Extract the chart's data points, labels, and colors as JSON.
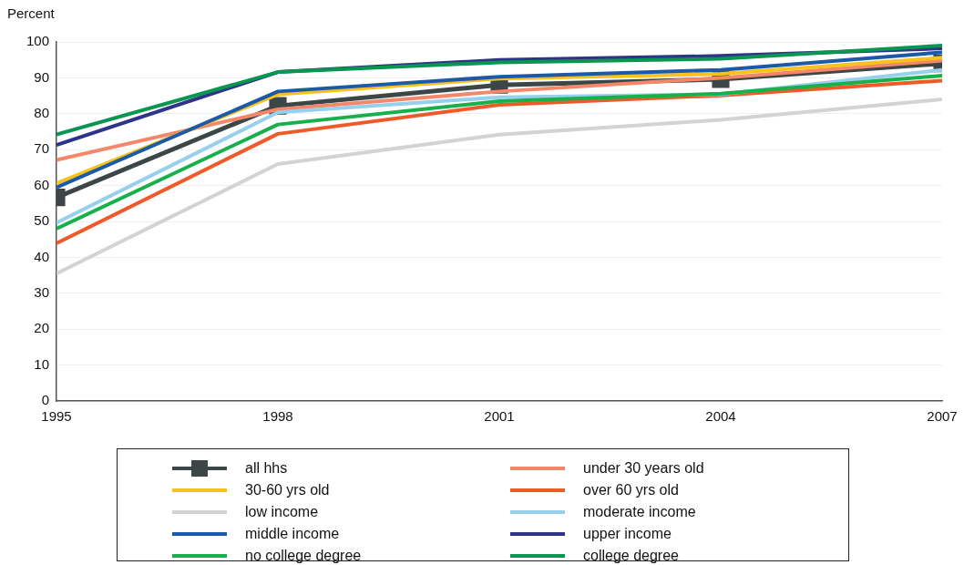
{
  "chart_data": {
    "type": "line",
    "ylabel": "Percent",
    "x": [
      1995,
      1998,
      2001,
      2004,
      2007
    ],
    "xlim": [
      1995,
      2007
    ],
    "xticks": [
      1995,
      1998,
      2001,
      2004,
      2007
    ],
    "ylim": [
      0,
      100
    ],
    "yticks": [
      0,
      10,
      20,
      30,
      40,
      50,
      60,
      70,
      80,
      90,
      100
    ],
    "grid": "y",
    "legend": "bottom",
    "marker": "none",
    "line_style": "solid",
    "series": [
      {
        "name": "all hhs",
        "color": "#3d4647",
        "marker": "square",
        "values": [
          56.7,
          82.2,
          88,
          89.6,
          94
        ]
      },
      {
        "name": "under 30 years old",
        "color": "#f4876a",
        "values": [
          67.1,
          81.2,
          86.2,
          90,
          94.8
        ]
      },
      {
        "name": "30-60 yrs old",
        "color": "#f7c11e",
        "values": [
          60.6,
          85.4,
          89.8,
          91.1,
          95.6
        ]
      },
      {
        "name": "over 60 yrs old",
        "color": "#f05a28",
        "values": [
          43.9,
          74.4,
          82.5,
          85.1,
          89.2
        ]
      },
      {
        "name": "low income",
        "color": "#d3d3d1",
        "values": [
          35.5,
          66,
          74.2,
          78.3,
          84
        ]
      },
      {
        "name": "moderate income",
        "color": "#96d0ec",
        "values": [
          49.6,
          80.4,
          84.6,
          85.4,
          92.2
        ]
      },
      {
        "name": "middle income",
        "color": "#1b5aa8",
        "values": [
          59.5,
          86.2,
          90.3,
          92.2,
          97.1
        ]
      },
      {
        "name": "upper income",
        "color": "#2e3589",
        "values": [
          71.3,
          91.6,
          95,
          96.1,
          98.2
        ]
      },
      {
        "name": "no college degree",
        "color": "#17b04b",
        "values": [
          48,
          77,
          83.5,
          85.6,
          90.6
        ]
      },
      {
        "name": "college degree",
        "color": "#0a9550",
        "values": [
          74.2,
          91.6,
          94.3,
          95.3,
          99
        ]
      }
    ]
  }
}
